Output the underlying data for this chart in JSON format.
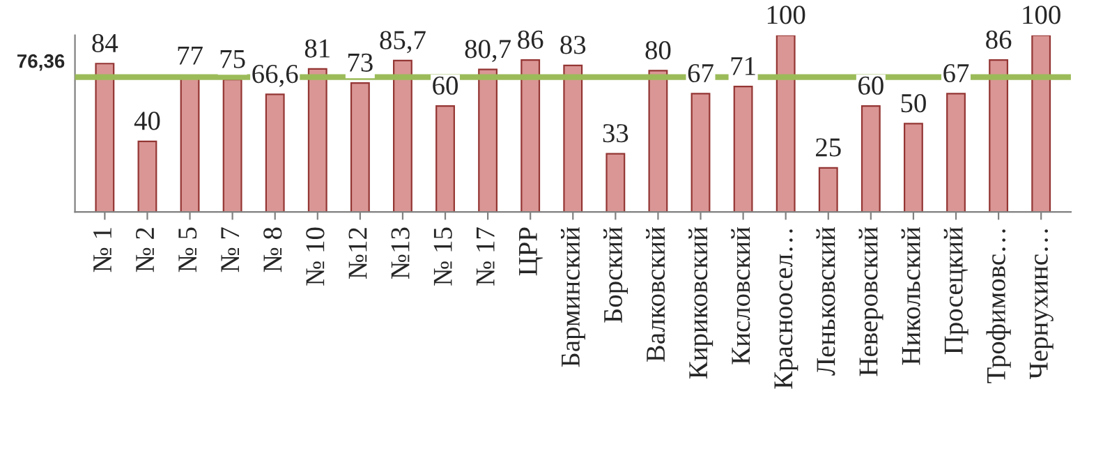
{
  "chart_data": {
    "type": "bar",
    "categories": [
      "№ 1",
      "№ 2",
      "№ 5",
      "№ 7",
      "№ 8",
      "№ 10",
      "№12",
      "№13",
      "№ 15",
      "№ 17",
      "ЦРР",
      "Барминский",
      "Борский",
      "Валковский",
      "Кириковский",
      "Кисловский",
      "Красноосел…",
      "Леньковский",
      "Неверовский",
      "Никольский",
      "Просецкий",
      "Трофимовс…",
      "Чернухинс…"
    ],
    "values": [
      84,
      40,
      77,
      75,
      66.6,
      81,
      73,
      85.7,
      60,
      80.7,
      86,
      83,
      33,
      80,
      67,
      71,
      100,
      25,
      60,
      50,
      67,
      86,
      100
    ],
    "value_labels": [
      "84",
      "40",
      "77",
      "75",
      "66,6",
      "81",
      "73",
      "85,7",
      "60",
      "80,7",
      "86",
      "83",
      "33",
      "80",
      "67",
      "71",
      "100",
      "25",
      "60",
      "50",
      "67",
      "86",
      "100"
    ],
    "color": "#d99694",
    "ylim": [
      0,
      100
    ],
    "ref_lines": [
      {
        "axis": "y",
        "value": 76.36,
        "label": "76,36",
        "color": "#9bbb59"
      }
    ],
    "grid": false,
    "legend": false
  }
}
